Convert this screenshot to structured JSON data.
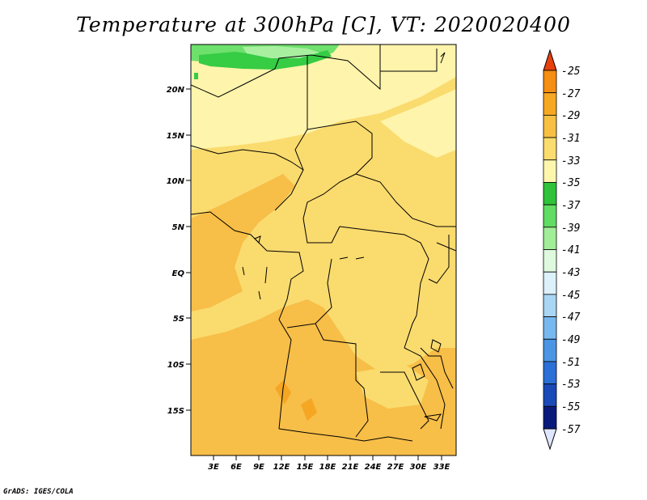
{
  "title": "Temperature at 300hPa [C], VT: 2020020400",
  "credit": "GrADS: IGES/COLA",
  "map": {
    "lon_range": [
      0,
      35
    ],
    "lat_range": [
      -20,
      25
    ],
    "lon_ticks": [
      "3E",
      "6E",
      "9E",
      "12E",
      "15E",
      "18E",
      "21E",
      "24E",
      "27E",
      "30E",
      "33E"
    ],
    "lat_ticks": [
      "20N",
      "15N",
      "10N",
      "5N",
      "EQ",
      "5S",
      "10S",
      "15S"
    ],
    "fill_colors": {
      "c27_29": "#f5a623",
      "c29_31": "#f7be48",
      "c31_33": "#fadb6e",
      "c33_35": "#fff4ab",
      "c35_37": "#36cc44",
      "c37_39": "#6ee06c",
      "c39_41": "#a8f0a0"
    }
  },
  "colorbar": {
    "labels": [
      "-25",
      "-27",
      "-29",
      "-31",
      "-33",
      "-35",
      "-37",
      "-39",
      "-41",
      "-43",
      "-45",
      "-47",
      "-49",
      "-51",
      "-53",
      "-55",
      "-57"
    ],
    "top_color": "#e8400c",
    "bottom_color": "#dfe6ff",
    "colors": [
      "#f06010",
      "#f58e12",
      "#f7a823",
      "#f7c043",
      "#fbdc6e",
      "#fff6ae",
      "#2fc23a",
      "#62dc62",
      "#a0ee98",
      "#dff9df",
      "#dcf1fa",
      "#a8d6f4",
      "#78b8f0",
      "#4a96e4",
      "#2a70d6",
      "#1a4ab8",
      "#0a1a7a"
    ]
  }
}
